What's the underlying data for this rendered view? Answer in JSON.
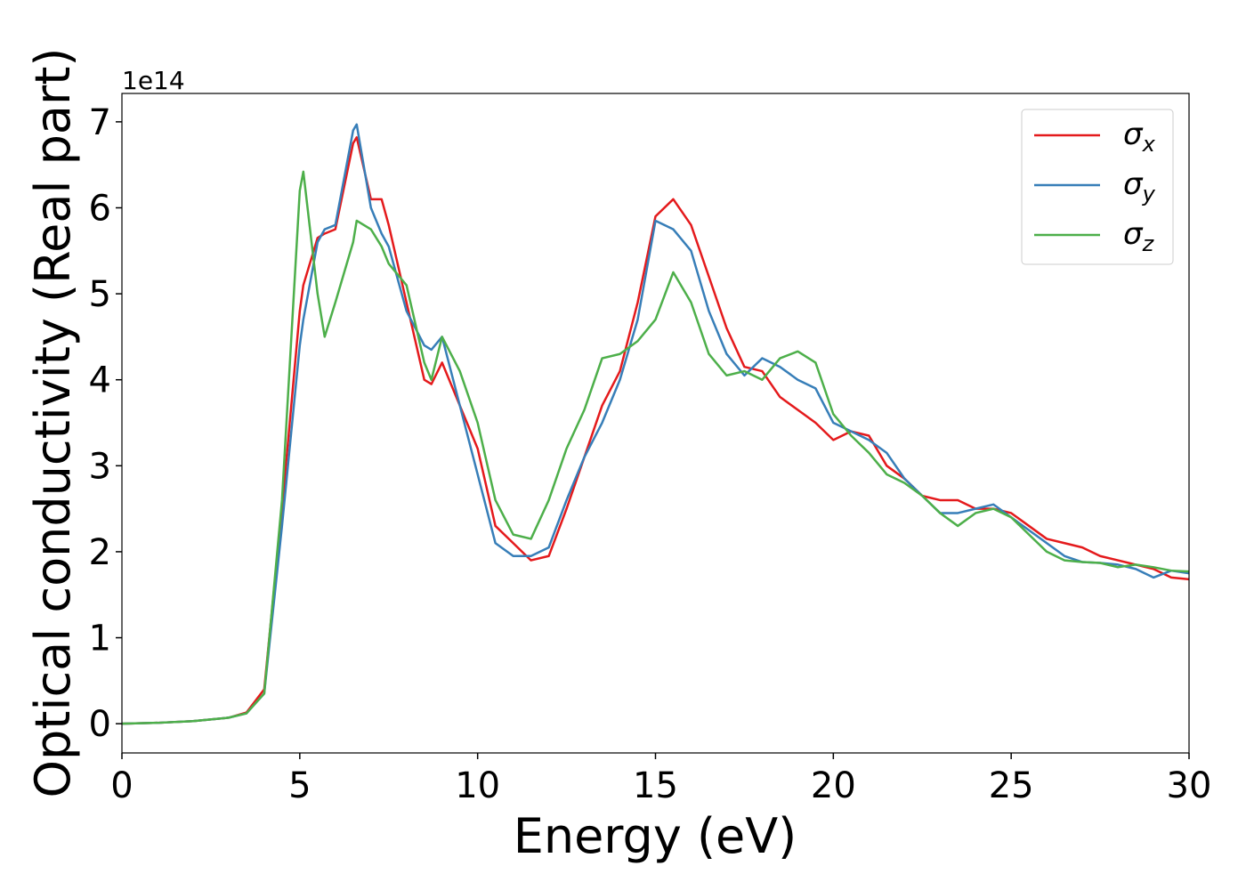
{
  "chart_data": {
    "type": "line",
    "xlabel": "Energy (eV)",
    "ylabel": "Optical conductivity (Real part)",
    "yaxis_offset": "1e14",
    "xlim": [
      0,
      30
    ],
    "ylim": [
      -0.34,
      7.33
    ],
    "xticks": [
      0,
      5,
      10,
      15,
      20,
      25,
      30
    ],
    "yticks": [
      0,
      1,
      2,
      3,
      4,
      5,
      6,
      7
    ],
    "grid": false,
    "legend": "upper right",
    "x": [
      0,
      1,
      2,
      3,
      3.5,
      4,
      4.5,
      5,
      5.1,
      5.5,
      5.7,
      6,
      6.5,
      6.6,
      7,
      7.3,
      7.5,
      8,
      8.5,
      8.7,
      9,
      9.5,
      10,
      10.5,
      11,
      11.5,
      12,
      12.5,
      13,
      13.5,
      14,
      14.5,
      15,
      15.5,
      16,
      16.5,
      17,
      17.5,
      18,
      18.5,
      19,
      19.5,
      20,
      20.5,
      21,
      21.5,
      22,
      22.5,
      23,
      23.5,
      24,
      24.5,
      25,
      25.5,
      26,
      26.5,
      27,
      27.5,
      28,
      28.5,
      29,
      29.5,
      30
    ],
    "series": [
      {
        "name": "σx",
        "color": "#e41a1c",
        "values": [
          0,
          0.01,
          0.03,
          0.07,
          0.13,
          0.4,
          2.5,
          4.8,
          5.1,
          5.65,
          5.7,
          5.75,
          6.75,
          6.82,
          6.1,
          6.1,
          5.8,
          4.9,
          4.0,
          3.95,
          4.2,
          3.7,
          3.2,
          2.3,
          2.1,
          1.9,
          1.95,
          2.5,
          3.1,
          3.7,
          4.1,
          4.9,
          5.9,
          6.1,
          5.8,
          5.2,
          4.6,
          4.15,
          4.1,
          3.8,
          3.65,
          3.5,
          3.3,
          3.4,
          3.35,
          3.0,
          2.85,
          2.65,
          2.6,
          2.6,
          2.5,
          2.5,
          2.45,
          2.3,
          2.15,
          2.1,
          2.05,
          1.95,
          1.9,
          1.85,
          1.8,
          1.7,
          1.68
        ]
      },
      {
        "name": "σy",
        "color": "#377eb8",
        "values": [
          0,
          0.01,
          0.03,
          0.07,
          0.12,
          0.35,
          2.3,
          4.4,
          4.7,
          5.6,
          5.75,
          5.8,
          6.9,
          6.97,
          6.0,
          5.7,
          5.55,
          4.8,
          4.4,
          4.35,
          4.5,
          3.7,
          2.9,
          2.1,
          1.95,
          1.95,
          2.05,
          2.6,
          3.1,
          3.5,
          4.0,
          4.7,
          5.85,
          5.75,
          5.5,
          4.8,
          4.3,
          4.05,
          4.25,
          4.15,
          4.0,
          3.9,
          3.5,
          3.4,
          3.3,
          3.15,
          2.85,
          2.65,
          2.45,
          2.45,
          2.5,
          2.55,
          2.4,
          2.25,
          2.1,
          1.95,
          1.88,
          1.87,
          1.85,
          1.8,
          1.7,
          1.78,
          1.75
        ]
      },
      {
        "name": "σz",
        "color": "#4daf4a",
        "values": [
          0,
          0.01,
          0.03,
          0.07,
          0.12,
          0.35,
          2.6,
          6.2,
          6.42,
          5.0,
          4.5,
          4.9,
          5.6,
          5.85,
          5.75,
          5.55,
          5.35,
          5.1,
          4.2,
          4.0,
          4.5,
          4.1,
          3.5,
          2.6,
          2.2,
          2.15,
          2.6,
          3.2,
          3.65,
          4.25,
          4.3,
          4.45,
          4.7,
          5.25,
          4.9,
          4.3,
          4.05,
          4.1,
          4.0,
          4.25,
          4.33,
          4.2,
          3.6,
          3.35,
          3.15,
          2.9,
          2.8,
          2.65,
          2.45,
          2.3,
          2.45,
          2.5,
          2.4,
          2.2,
          2.0,
          1.9,
          1.88,
          1.87,
          1.82,
          1.85,
          1.82,
          1.78,
          1.77
        ]
      }
    ]
  }
}
